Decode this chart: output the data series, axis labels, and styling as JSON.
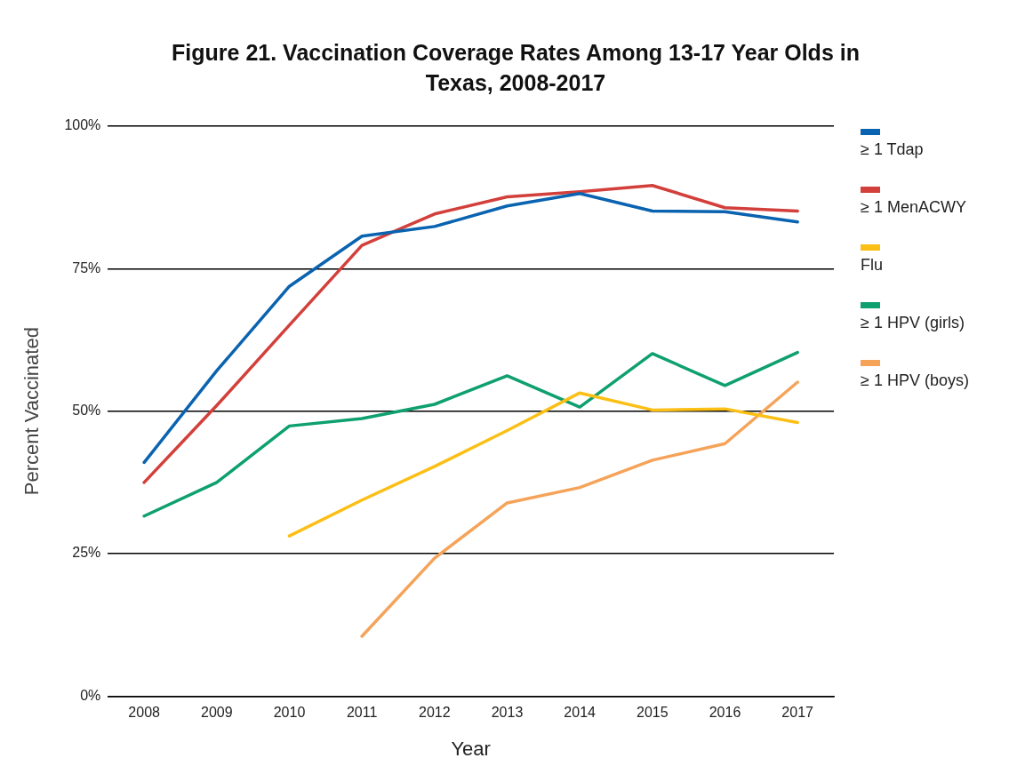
{
  "chart_data": {
    "type": "line",
    "title": "Figure 21. Vaccination Coverage Rates Among 13-17 Year Olds in Texas, 2008-2017",
    "xlabel": "Year",
    "ylabel": "Percent Vaccinated",
    "categories": [
      "2008",
      "2009",
      "2010",
      "2011",
      "2012",
      "2013",
      "2014",
      "2015",
      "2016",
      "2017"
    ],
    "series": [
      {
        "name": "≥ 1 Tdap",
        "color": "#0a63b0",
        "values": [
          41.0,
          57.1,
          71.9,
          80.7,
          82.4,
          86.0,
          88.2,
          85.1,
          85.0,
          83.2
        ]
      },
      {
        "name": "≥ 1 MenACWY",
        "color": "#d3403b",
        "values": [
          37.5,
          51.0,
          65.1,
          79.1,
          84.6,
          87.6,
          88.5,
          89.6,
          85.7,
          85.1
        ]
      },
      {
        "name": "Flu",
        "color": "#fbbf16",
        "values": [
          null,
          null,
          28.1,
          34.4,
          40.3,
          46.6,
          53.2,
          50.2,
          50.4,
          48.0
        ]
      },
      {
        "name": "≥ 1 HPV (girls)",
        "color": "#0ea06e",
        "values": [
          31.6,
          37.5,
          47.4,
          48.7,
          51.2,
          56.2,
          50.7,
          60.1,
          54.5,
          60.3
        ]
      },
      {
        "name": "≥ 1 HPV (boys)",
        "color": "#f6a35a",
        "values": [
          null,
          null,
          null,
          10.5,
          24.2,
          33.9,
          36.6,
          41.4,
          44.3,
          55.1
        ]
      }
    ],
    "ylim": [
      0,
      100
    ],
    "yticks": [
      {
        "value": 0,
        "label": "0%"
      },
      {
        "value": 25,
        "label": "25%"
      },
      {
        "value": 50,
        "label": "50%"
      },
      {
        "value": 75,
        "label": "75%"
      },
      {
        "value": 100,
        "label": "100%"
      }
    ],
    "grid": "y",
    "legend": "right",
    "marker": "none",
    "line_style": "solid"
  }
}
